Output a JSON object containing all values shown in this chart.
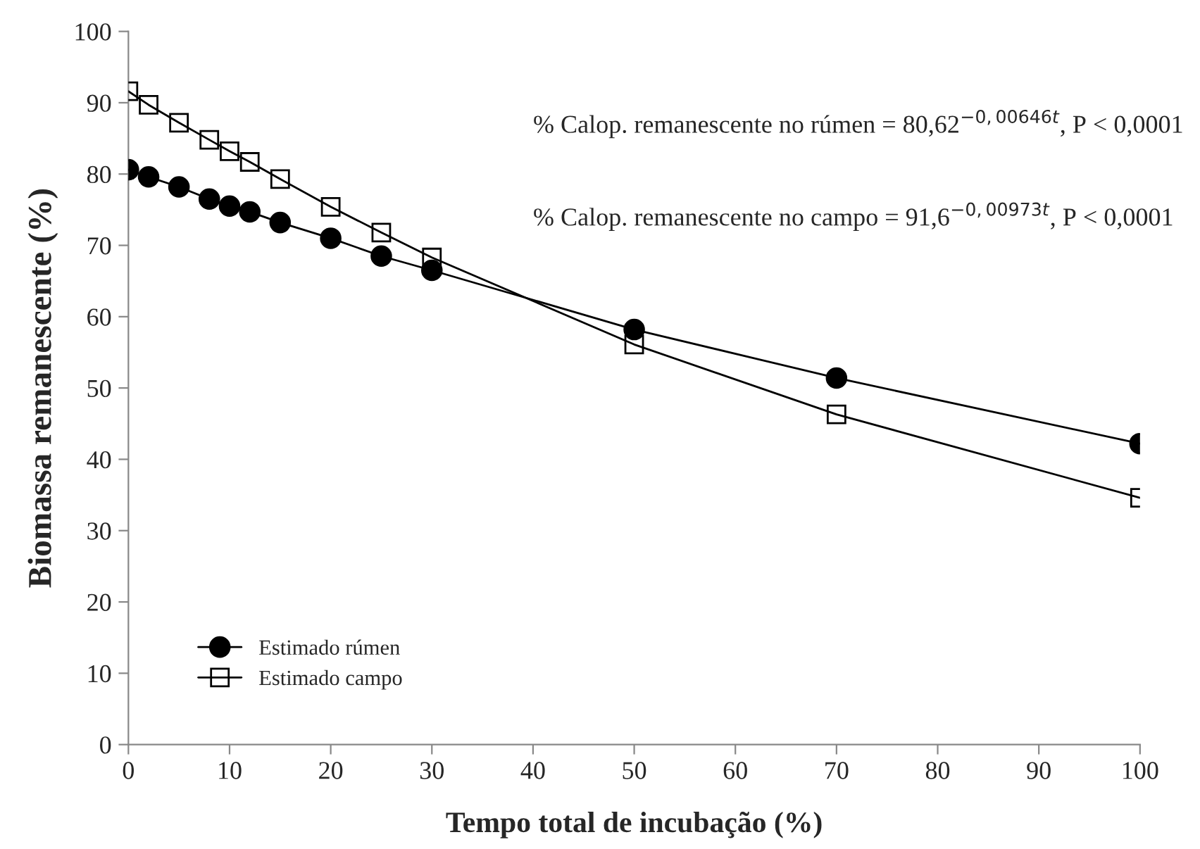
{
  "chart_data": {
    "type": "line",
    "xlabel": "Tempo total de incubação (%)",
    "ylabel": "Biomassa remanescente (%)",
    "x": [
      0,
      2,
      5,
      8,
      10,
      12,
      15,
      20,
      25,
      30,
      50,
      70,
      100
    ],
    "series": [
      {
        "name": "Estimado rúmen",
        "color": "#000000",
        "marker": "circle",
        "values": [
          80.6,
          79.6,
          78.2,
          76.5,
          75.5,
          74.7,
          73.2,
          71.0,
          68.5,
          66.5,
          58.2,
          51.4,
          42.2
        ]
      },
      {
        "name": "Estimado campo",
        "color": "#000000",
        "marker": "square",
        "values": [
          91.6,
          89.7,
          87.2,
          84.8,
          83.2,
          81.7,
          79.3,
          75.4,
          71.8,
          68.3,
          56.1,
          46.3,
          34.6
        ]
      }
    ],
    "annotations": [
      "% Calop. remanescente no rúmen = 80,62$^{−0,00646t}$, P < 0,0001",
      "% Calop. remanescente no campo = 91,6$^{−0,00973t}$, P < 0,0001"
    ],
    "xlim": [
      0,
      100
    ],
    "ylim": [
      0,
      100
    ],
    "xticks": [
      0,
      10,
      20,
      30,
      40,
      50,
      60,
      70,
      80,
      90,
      100
    ],
    "yticks": [
      0,
      10,
      20,
      30,
      40,
      50,
      60,
      70,
      80,
      90,
      100
    ],
    "grid": false,
    "legend": "bottom left",
    "line_style": "solid"
  }
}
